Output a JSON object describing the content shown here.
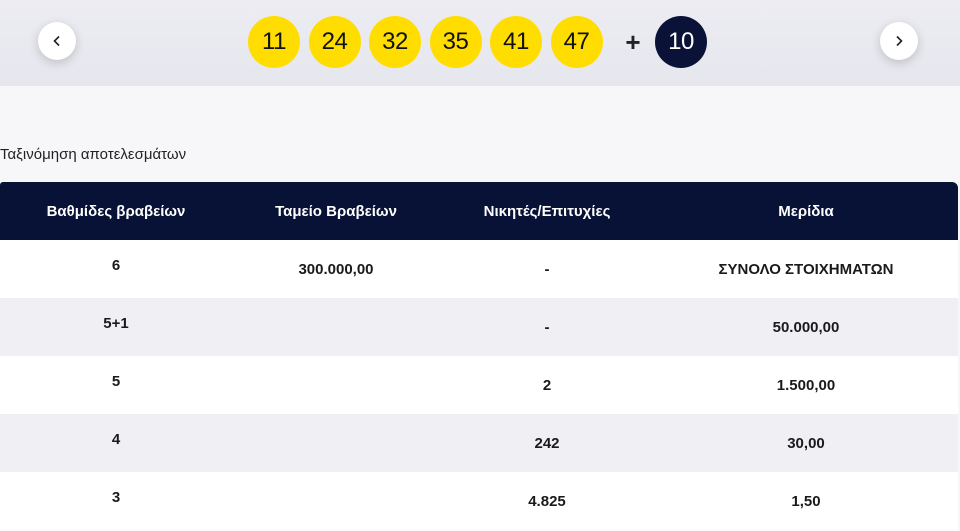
{
  "draw": {
    "numbers": [
      "11",
      "24",
      "32",
      "35",
      "41",
      "47"
    ],
    "plus_sign": "+",
    "bonus": "10"
  },
  "sort_label": "Ταξινόμηση αποτελεσμάτων",
  "table": {
    "headers": [
      "Βαθμίδες βραβείων",
      "Ταμείο Βραβείων",
      "Νικητές/Επιτυχίες",
      "Μερίδια"
    ],
    "rows": [
      [
        "6",
        "300.000,00",
        "-",
        "ΣΥΝΟΛΟ ΣΤΟΙΧΗΜΑΤΩΝ"
      ],
      [
        "5+1",
        "",
        "-",
        "50.000,00"
      ],
      [
        "5",
        "",
        "2",
        "1.500,00"
      ],
      [
        "4",
        "",
        "242",
        "30,00"
      ],
      [
        "3",
        "",
        "4.825",
        "1,50"
      ]
    ]
  },
  "colors": {
    "ball": "#ffdd00",
    "bonus_ball": "#0b1238",
    "header_bg": "#081136"
  },
  "icons": {
    "prev": "chevron-left-icon",
    "next": "chevron-right-icon"
  }
}
